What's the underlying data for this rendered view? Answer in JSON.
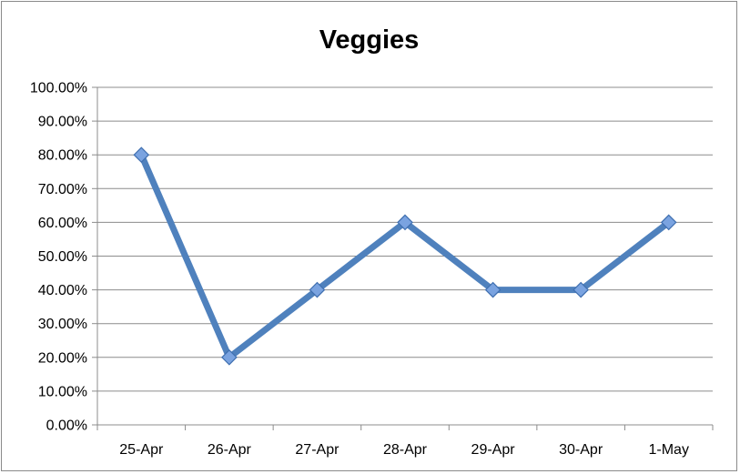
{
  "chart_data": {
    "type": "line",
    "title": "Veggies",
    "xlabel": "",
    "ylabel": "",
    "categories": [
      "25-Apr",
      "26-Apr",
      "27-Apr",
      "28-Apr",
      "29-Apr",
      "30-Apr",
      "1-May"
    ],
    "series": [
      {
        "values": [
          0.8,
          0.2,
          0.4,
          0.6,
          0.4,
          0.4,
          0.6
        ]
      }
    ],
    "ylim": [
      0,
      1
    ],
    "y_ticks": [
      0,
      0.1,
      0.2,
      0.3,
      0.4,
      0.5,
      0.6,
      0.7,
      0.8,
      0.9,
      1.0
    ],
    "y_tick_labels": [
      "0.00%",
      "10.00%",
      "20.00%",
      "30.00%",
      "40.00%",
      "50.00%",
      "60.00%",
      "70.00%",
      "80.00%",
      "90.00%",
      "100.00%"
    ],
    "grid": true,
    "legend": "none",
    "colors": {
      "line": "#4f81bd",
      "marker_fill": "#7aa3e0",
      "marker_stroke": "#3f6fb0",
      "grid": "#8c8c8c",
      "axis": "#8c8c8c"
    }
  }
}
